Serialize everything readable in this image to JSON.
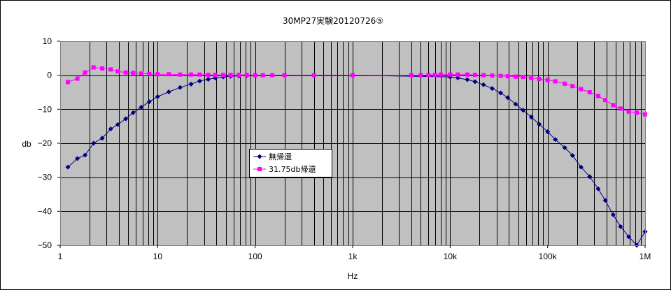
{
  "chart_data": {
    "type": "line",
    "title": "30MP27実験20120726⑤",
    "xlabel": "Hz",
    "ylabel": "db",
    "x_scale": "log",
    "xlim": [
      1,
      1000000
    ],
    "ylim": [
      -50,
      10
    ],
    "y_ticks": [
      10,
      0,
      -10,
      -20,
      -30,
      -40,
      -50
    ],
    "y_tick_labels": [
      "10",
      "0",
      "−10",
      "−20",
      "−30",
      "−40",
      "−50"
    ],
    "x_ticks": [
      1,
      10,
      100,
      1000,
      10000,
      100000,
      1000000
    ],
    "x_tick_labels": [
      "1",
      "10",
      "100",
      "1k",
      "10k",
      "100k",
      "1M"
    ],
    "grid": true,
    "legend_placement": "center-left",
    "colors": {
      "plot_background": "#c0c0c0",
      "series_1": "#000080",
      "series_2": "#ff00ff"
    },
    "series": [
      {
        "name": "無帰還",
        "marker": "diamond",
        "color": "#000080",
        "x": [
          1.2,
          1.5,
          1.8,
          2.2,
          2.7,
          3.3,
          3.9,
          4.7,
          5.6,
          6.8,
          8.2,
          10,
          13,
          17,
          22,
          27,
          33,
          39,
          47,
          56,
          68,
          82,
          100,
          1000,
          10000,
          12000,
          15000,
          18000,
          22000,
          27000,
          33000,
          39000,
          47000,
          56000,
          68000,
          82000,
          100000,
          120000,
          150000,
          180000,
          220000,
          270000,
          330000,
          390000,
          470000,
          560000,
          680000,
          820000,
          1000000
        ],
        "y": [
          -27,
          -24.5,
          -23.5,
          -20,
          -18.5,
          -15.8,
          -14.5,
          -12.8,
          -11,
          -9.4,
          -7.8,
          -6.3,
          -4.9,
          -3.6,
          -2.6,
          -1.7,
          -1.2,
          -0.8,
          -0.5,
          -0.3,
          -0.2,
          -0.1,
          0,
          0,
          -0.5,
          -0.8,
          -1.3,
          -1.9,
          -2.8,
          -3.9,
          -5.2,
          -6.6,
          -8.5,
          -10.3,
          -12.3,
          -14.4,
          -16.6,
          -18.9,
          -21.3,
          -23.6,
          -27,
          -29.8,
          -33.4,
          -36.8,
          -41,
          -44.5,
          -47.5,
          -50,
          -46
        ]
      },
      {
        "name": "31.75db帰還",
        "marker": "square",
        "color": "#ff00ff",
        "x": [
          1.2,
          1.5,
          1.8,
          2.2,
          2.7,
          3.3,
          3.9,
          4.7,
          5.6,
          6.8,
          8.2,
          10,
          13,
          17,
          22,
          27,
          33,
          39,
          47,
          56,
          68,
          82,
          100,
          120,
          150,
          200,
          400,
          1000,
          4000,
          5000,
          6000,
          7000,
          8000,
          10000,
          12000,
          15000,
          18000,
          22000,
          27000,
          33000,
          39000,
          47000,
          56000,
          68000,
          82000,
          100000,
          120000,
          150000,
          180000,
          220000,
          270000,
          330000,
          390000,
          470000,
          560000,
          680000,
          820000,
          1000000
        ],
        "y": [
          -2,
          -1,
          0.8,
          2.3,
          2,
          1.7,
          1.1,
          0.8,
          0.7,
          0.5,
          0.4,
          0.3,
          0.3,
          0.2,
          0.2,
          0.2,
          0.1,
          0.1,
          0.1,
          0.1,
          0.1,
          0.1,
          0,
          0,
          0,
          0,
          0,
          0,
          0,
          0,
          0.1,
          0.1,
          0.2,
          0.2,
          0.2,
          0.2,
          0.1,
          0,
          -0.1,
          -0.2,
          -0.3,
          -0.4,
          -0.5,
          -0.8,
          -1.1,
          -1.4,
          -1.8,
          -2.5,
          -3.2,
          -4.1,
          -5,
          -6.1,
          -7.3,
          -8.8,
          -9.8,
          -10.7,
          -11,
          -11.5
        ]
      }
    ]
  }
}
